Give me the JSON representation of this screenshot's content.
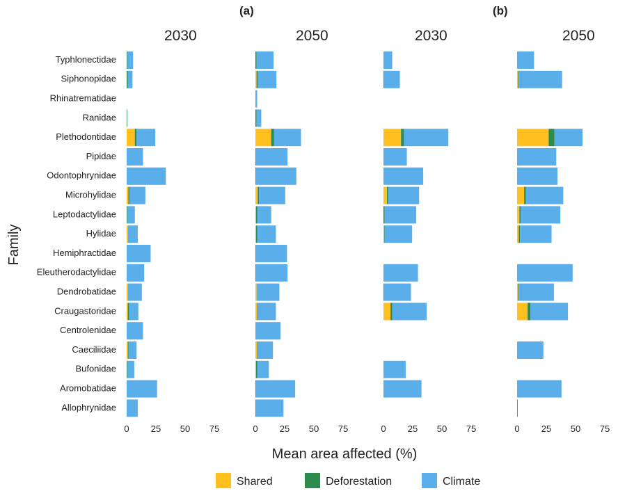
{
  "chart_data": {
    "type": "bar",
    "stacked": true,
    "orientation": "horizontal",
    "xlabel": "Mean area affected (%)",
    "ylabel": "Family",
    "xticks": [
      "0",
      "25",
      "50",
      "75"
    ],
    "xlim": [
      0,
      75
    ],
    "legend": {
      "position": "bottom",
      "entries": [
        {
          "name": "Shared",
          "color": "#FFC020"
        },
        {
          "name": "Deforestation",
          "color": "#2E8B4E"
        },
        {
          "name": "Climate",
          "color": "#5AAEEA"
        }
      ]
    },
    "families": [
      "Typhlonectidae",
      "Siphonopidae",
      "Rhinatrematidae",
      "Ranidae",
      "Plethodontidae",
      "Pipidae",
      "Odontophrynidae",
      "Microhylidae",
      "Leptodactylidae",
      "Hylidae",
      "Hemiphractidae",
      "Eleutherodactylidae",
      "Dendrobatidae",
      "Craugastoridae",
      "Centrolenidae",
      "Caeciliidae",
      "Bufonidae",
      "Aromobatidae",
      "Allophrynidae"
    ],
    "group_labels": [
      "(a)",
      "(b)"
    ],
    "panels": [
      {
        "year": "2030",
        "shared": [
          0,
          0,
          0,
          0,
          7,
          0,
          0,
          1.5,
          0,
          1,
          0,
          0,
          1,
          1,
          0,
          1,
          0,
          0,
          0
        ],
        "deforestation": [
          0.5,
          1,
          0,
          0.5,
          1.5,
          0,
          0,
          1,
          0.5,
          0,
          0,
          0,
          0,
          1,
          0,
          0.5,
          0.5,
          0,
          0
        ],
        "climate": [
          5,
          4,
          0,
          0,
          16,
          14,
          33.5,
          13.5,
          6.5,
          8.5,
          20.5,
          15,
          12,
          8,
          14,
          7,
          6,
          26,
          9.5
        ]
      },
      {
        "year": "2050",
        "shared": [
          0,
          1,
          0,
          0,
          13.5,
          0,
          0,
          2,
          0.5,
          0.5,
          0,
          0,
          1,
          1.5,
          0,
          1.5,
          0.5,
          0,
          0
        ],
        "deforestation": [
          1,
          1,
          0,
          1,
          2.5,
          0.5,
          0.5,
          1,
          1,
          1,
          0.5,
          0.5,
          0,
          0.5,
          0,
          0.5,
          1,
          0.5,
          0.5
        ],
        "climate": [
          14.5,
          16,
          1.5,
          4,
          23,
          27,
          34.5,
          22.5,
          12,
          16,
          26.5,
          27,
          19.5,
          15.5,
          21.5,
          13,
          10,
          33.5,
          23.5
        ]
      },
      {
        "year": "2030",
        "shared": [
          0,
          0,
          0,
          0,
          15,
          0,
          0,
          3,
          0,
          0.5,
          0,
          0,
          0,
          6,
          0,
          0,
          0,
          0,
          0
        ],
        "deforestation": [
          0,
          0.5,
          0,
          0,
          2.5,
          0,
          0,
          1,
          1,
          0.5,
          0,
          0,
          0.5,
          1.5,
          0,
          0,
          0,
          0,
          0
        ],
        "climate": [
          7.5,
          13.5,
          0,
          0,
          38,
          20,
          34,
          26.5,
          27,
          23.5,
          0,
          29.5,
          23,
          29.5,
          0,
          0,
          19,
          32.5,
          0
        ]
      },
      {
        "year": "2050",
        "shared": [
          0,
          1,
          0,
          0,
          27,
          0,
          0,
          6,
          2,
          1.5,
          0,
          0,
          1,
          9,
          0,
          0,
          0,
          0,
          0
        ],
        "deforestation": [
          0,
          0.5,
          0,
          0,
          5,
          0,
          0,
          1.5,
          1,
          1,
          0,
          0,
          0.5,
          2.5,
          0,
          0,
          0,
          0,
          0.5
        ],
        "climate": [
          14.5,
          37,
          0,
          0,
          24,
          33.5,
          34.5,
          32,
          34,
          27,
          0,
          47.5,
          30,
          32,
          0,
          22.5,
          0,
          38,
          0
        ]
      }
    ]
  }
}
